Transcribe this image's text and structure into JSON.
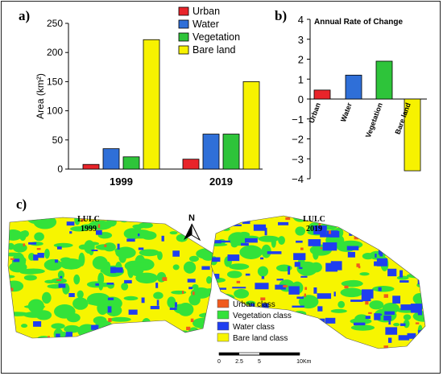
{
  "panel_labels": {
    "a": "a)",
    "b": "b)",
    "c": "c)"
  },
  "chart_data": [
    {
      "type": "bar",
      "panel": "a",
      "categories": [
        "1999",
        "2019"
      ],
      "ylabel": "Area (km²)",
      "ylim": [
        0,
        250
      ],
      "yticks": [
        0,
        50,
        100,
        150,
        200,
        250
      ],
      "legend_position": "top-right",
      "series": [
        {
          "name": "Urban",
          "color": "#e8242a",
          "values": [
            8,
            17
          ]
        },
        {
          "name": "Water",
          "color": "#2f6fd8",
          "values": [
            35,
            60
          ]
        },
        {
          "name": "Vegetation",
          "color": "#2ec43a",
          "values": [
            21,
            60
          ]
        },
        {
          "name": "Bare land",
          "color": "#f7f200",
          "values": [
            222,
            150
          ]
        }
      ]
    },
    {
      "type": "bar",
      "panel": "b",
      "title": "Annual Rate of Change",
      "ylim": [
        -4,
        4
      ],
      "yticks": [
        4,
        3,
        2,
        1,
        0,
        -1,
        -2,
        -3,
        -4
      ],
      "categories": [
        "Urban",
        "Water",
        "Vegetation",
        "Bare land"
      ],
      "colors": [
        "#e8242a",
        "#2f6fd8",
        "#2ec43a",
        "#f7f200"
      ],
      "values": [
        0.45,
        1.2,
        1.9,
        -3.6
      ]
    }
  ],
  "map": {
    "titles": [
      "LULC\n1999",
      "LULC\n2019"
    ],
    "title_lines": [
      [
        "LULC",
        "1999"
      ],
      [
        "LULC",
        "2019"
      ]
    ],
    "north": "N",
    "legend": [
      {
        "label": "Urban class",
        "color": "#f05a1e"
      },
      {
        "label": "Vegetation class",
        "color": "#33e23a"
      },
      {
        "label": "Water class",
        "color": "#1f3ef0"
      },
      {
        "label": "Bare land class",
        "color": "#f7f500"
      }
    ],
    "scale": {
      "ticks": [
        "0",
        "2.5",
        "5",
        "10"
      ],
      "unit": "Km"
    }
  }
}
